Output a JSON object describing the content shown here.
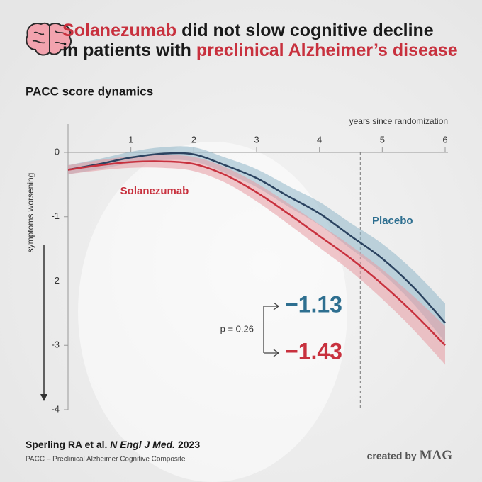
{
  "chart_data": {
    "type": "line",
    "title_parts": [
      "Solanezumab",
      " did not slow cognitive decline",
      "in patients with ",
      "preclinical Alzheimer’s disease"
    ],
    "subtitle": "PACC score dynamics",
    "x_label": "years since randomization",
    "y_label": "symptoms worsening",
    "x": [
      0,
      0.5,
      1,
      1.5,
      2,
      2.5,
      3,
      3.5,
      4,
      4.5,
      5,
      5.5,
      6
    ],
    "xlim": [
      0,
      6
    ],
    "xticks": [
      1,
      2,
      3,
      4,
      5,
      6
    ],
    "ylim": [
      -4,
      0
    ],
    "yticks": [
      0,
      -1,
      -2,
      -3,
      -4
    ],
    "endpoint_x": 4.65,
    "series": [
      {
        "name": "Placebo",
        "color": "#2b4360",
        "label_color": "#2e6f90",
        "band_color": "#8fb6c9",
        "values": [
          -0.27,
          -0.18,
          -0.08,
          -0.02,
          -0.03,
          -0.2,
          -0.4,
          -0.68,
          -0.95,
          -1.3,
          -1.65,
          -2.1,
          -2.65
        ],
        "upper": [
          -0.2,
          -0.1,
          0.01,
          0.08,
          0.08,
          -0.08,
          -0.26,
          -0.52,
          -0.77,
          -1.1,
          -1.42,
          -1.84,
          -2.35
        ],
        "lower": [
          -0.34,
          -0.26,
          -0.17,
          -0.12,
          -0.14,
          -0.32,
          -0.54,
          -0.84,
          -1.13,
          -1.5,
          -1.88,
          -2.36,
          -2.95
        ],
        "endpoint": {
          "value": -1.13,
          "label": "−1.13"
        }
      },
      {
        "name": "Solanezumab",
        "color": "#c8313e",
        "label_color": "#c8313e",
        "band_color": "#e79aa3",
        "values": [
          -0.27,
          -0.2,
          -0.15,
          -0.14,
          -0.18,
          -0.35,
          -0.62,
          -0.95,
          -1.3,
          -1.65,
          -2.05,
          -2.5,
          -3.0
        ],
        "upper": [
          -0.2,
          -0.12,
          -0.06,
          -0.04,
          -0.07,
          -0.23,
          -0.48,
          -0.79,
          -1.12,
          -1.45,
          -1.82,
          -2.24,
          -2.7
        ],
        "lower": [
          -0.34,
          -0.28,
          -0.24,
          -0.24,
          -0.29,
          -0.47,
          -0.76,
          -1.11,
          -1.48,
          -1.85,
          -2.28,
          -2.76,
          -3.3
        ],
        "endpoint": {
          "value": -1.43,
          "label": "−1.43"
        }
      }
    ],
    "p_value": "p = 0.26",
    "source_parts": [
      "Sperling RA et al. ",
      "N Engl J Med.",
      " 2023"
    ],
    "footnote": "PACC – Preclinical Alzheimer Cognitive Composite",
    "credit_parts": [
      "created by ",
      "MAG"
    ]
  }
}
